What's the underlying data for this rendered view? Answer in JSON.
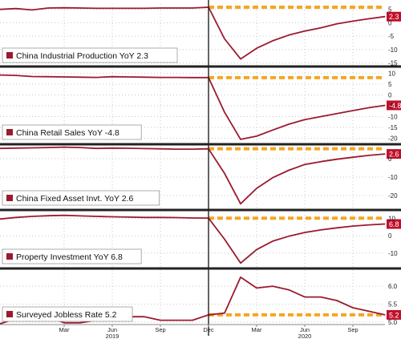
{
  "chart_data": [
    {
      "type": "line",
      "legend": "China Industrial Production YoY 2.3",
      "last_value_label": "2.3",
      "ylim": [
        -16,
        7
      ],
      "yticks": [
        {
          "v": 5,
          "label": "5"
        },
        {
          "v": 0,
          "label": "0"
        },
        {
          "v": -5,
          "label": "-5"
        },
        {
          "v": -10,
          "label": "-10"
        },
        {
          "v": -15,
          "label": "-15"
        }
      ],
      "x": [
        "2018-11",
        "2018-12",
        "2019-01",
        "2019-02",
        "2019-03",
        "2019-04",
        "2019-05",
        "2019-06",
        "2019-07",
        "2019-08",
        "2019-09",
        "2019-10",
        "2019-11",
        "2019-12",
        "2020-01",
        "2020-02",
        "2020-03",
        "2020-04",
        "2020-05",
        "2020-06",
        "2020-07",
        "2020-08",
        "2020-09",
        "2020-10",
        "2020-11"
      ],
      "values": [
        5.0,
        5.3,
        4.8,
        5.5,
        5.6,
        5.5,
        5.4,
        5.4,
        5.4,
        5.4,
        5.5,
        5.5,
        5.5,
        5.8,
        -6,
        -13.5,
        -9.5,
        -6.7,
        -4.6,
        -3.1,
        -1.9,
        -0.4,
        0.6,
        1.5,
        2.3
      ],
      "consensus_line": {
        "from": "2019-12",
        "to": "2020-11",
        "value": 5.8
      }
    },
    {
      "type": "line",
      "legend": "China Retail Sales YoY -4.8",
      "last_value_label": "-4.8",
      "ylim": [
        -22,
        12
      ],
      "yticks": [
        {
          "v": 10,
          "label": "10"
        },
        {
          "v": 5,
          "label": "5"
        },
        {
          "v": 0,
          "label": "0"
        },
        {
          "v": -5,
          "label": "-5"
        },
        {
          "v": -10,
          "label": "-10"
        },
        {
          "v": -15,
          "label": "-15"
        },
        {
          "v": -20,
          "label": "-20"
        }
      ],
      "x": [
        "2018-11",
        "2018-12",
        "2019-01",
        "2019-02",
        "2019-03",
        "2019-04",
        "2019-05",
        "2019-06",
        "2019-07",
        "2019-08",
        "2019-09",
        "2019-10",
        "2019-11",
        "2019-12",
        "2020-01",
        "2020-02",
        "2020-03",
        "2020-04",
        "2020-05",
        "2020-06",
        "2020-07",
        "2020-08",
        "2020-09",
        "2020-10",
        "2020-11"
      ],
      "values": [
        9.2,
        9.0,
        8.5,
        8.4,
        8.3,
        8.2,
        8.1,
        8.4,
        8.3,
        8.2,
        8.1,
        8.1,
        8.0,
        8.0,
        -8,
        -20.5,
        -19,
        -16.2,
        -13.5,
        -11.4,
        -10,
        -8.6,
        -7.2,
        -5.9,
        -4.8
      ],
      "consensus_line": {
        "from": "2019-12",
        "to": "2020-11",
        "value": 8.0
      }
    },
    {
      "type": "line",
      "legend": "China Fixed Asset Invt. YoY 2.6",
      "last_value_label": "2.6",
      "ylim": [
        -27,
        7
      ],
      "yticks": [
        {
          "v": 0,
          "label": "0"
        },
        {
          "v": -10,
          "label": "-10"
        },
        {
          "v": -20,
          "label": "-20"
        }
      ],
      "x": [
        "2018-11",
        "2018-12",
        "2019-01",
        "2019-02",
        "2019-03",
        "2019-04",
        "2019-05",
        "2019-06",
        "2019-07",
        "2019-08",
        "2019-09",
        "2019-10",
        "2019-11",
        "2019-12",
        "2020-01",
        "2020-02",
        "2020-03",
        "2020-04",
        "2020-05",
        "2020-06",
        "2020-07",
        "2020-08",
        "2020-09",
        "2020-10",
        "2020-11"
      ],
      "values": [
        5.6,
        5.8,
        5.9,
        6.1,
        6.3,
        6.1,
        5.6,
        5.8,
        5.7,
        5.5,
        5.4,
        5.2,
        5.2,
        5.4,
        -8,
        -24.5,
        -16.1,
        -10.3,
        -6.3,
        -3.1,
        -1.6,
        -0.3,
        0.8,
        1.8,
        2.6
      ],
      "consensus_line": {
        "from": "2019-12",
        "to": "2020-11",
        "value": 5.4
      }
    },
    {
      "type": "line",
      "legend": "Property Investment YoY 6.8",
      "last_value_label": "6.8",
      "ylim": [
        -18,
        14
      ],
      "yticks": [
        {
          "v": 10,
          "label": "10"
        },
        {
          "v": 0,
          "label": "0"
        },
        {
          "v": -10,
          "label": "-10"
        }
      ],
      "x": [
        "2018-11",
        "2018-12",
        "2019-01",
        "2019-02",
        "2019-03",
        "2019-04",
        "2019-05",
        "2019-06",
        "2019-07",
        "2019-08",
        "2019-09",
        "2019-10",
        "2019-11",
        "2019-12",
        "2020-01",
        "2020-02",
        "2020-03",
        "2020-04",
        "2020-05",
        "2020-06",
        "2020-07",
        "2020-08",
        "2020-09",
        "2020-10",
        "2020-11"
      ],
      "values": [
        9.7,
        10.6,
        11.2,
        11.6,
        11.8,
        11.5,
        11.2,
        11.0,
        10.8,
        10.6,
        10.6,
        10.5,
        10.3,
        10.2,
        -2,
        -15.8,
        -8,
        -3.1,
        -0.3,
        1.9,
        3.4,
        4.6,
        5.6,
        6.3,
        6.8
      ],
      "consensus_line": {
        "from": "2019-12",
        "to": "2020-11",
        "value": 10.2
      }
    },
    {
      "type": "line",
      "legend": "Surveyed Jobless Rate 5.2",
      "last_value_label": "5.2",
      "ylim": [
        4.93,
        6.45
      ],
      "yticks": [
        {
          "v": 6.0,
          "label": "6.0"
        },
        {
          "v": 5.5,
          "label": "5.5"
        },
        {
          "v": 5.0,
          "label": "5.0"
        }
      ],
      "x": [
        "2018-11",
        "2018-12",
        "2019-01",
        "2019-02",
        "2019-03",
        "2019-04",
        "2019-05",
        "2019-06",
        "2019-07",
        "2019-08",
        "2019-09",
        "2019-10",
        "2019-11",
        "2019-12",
        "2020-01",
        "2020-02",
        "2020-03",
        "2020-04",
        "2020-05",
        "2020-06",
        "2020-07",
        "2020-08",
        "2020-09",
        "2020-10",
        "2020-11"
      ],
      "values": [
        4.95,
        5.1,
        5.25,
        5.15,
        4.98,
        4.98,
        5.05,
        5.25,
        5.15,
        5.15,
        5.05,
        5.05,
        5.05,
        5.2,
        5.25,
        6.25,
        5.95,
        6.0,
        5.9,
        5.7,
        5.7,
        5.6,
        5.4,
        5.3,
        5.2
      ],
      "consensus_line": {
        "from": "2019-12",
        "to": "2020-11",
        "value": 5.2
      }
    }
  ],
  "x_axis": {
    "month_ticks": [
      {
        "date": "2019-03",
        "label": "Mar"
      },
      {
        "date": "2019-06",
        "label": "Jun"
      },
      {
        "date": "2019-09",
        "label": "Sep"
      },
      {
        "date": "2019-12",
        "label": "Dec"
      },
      {
        "date": "2020-03",
        "label": "Mar"
      },
      {
        "date": "2020-06",
        "label": "Jun"
      },
      {
        "date": "2020-09",
        "label": "Sep"
      }
    ],
    "year_labels": [
      {
        "date": "2019-06",
        "label": "2019"
      },
      {
        "date": "2020-06",
        "label": "2020"
      }
    ],
    "divider_date": "2019-12"
  },
  "colors": {
    "line": "#9a1b2f",
    "consensus": "#f5a623",
    "divider": "#222222",
    "grid": "#c8c8c8",
    "label_bg": "#c0102b"
  }
}
